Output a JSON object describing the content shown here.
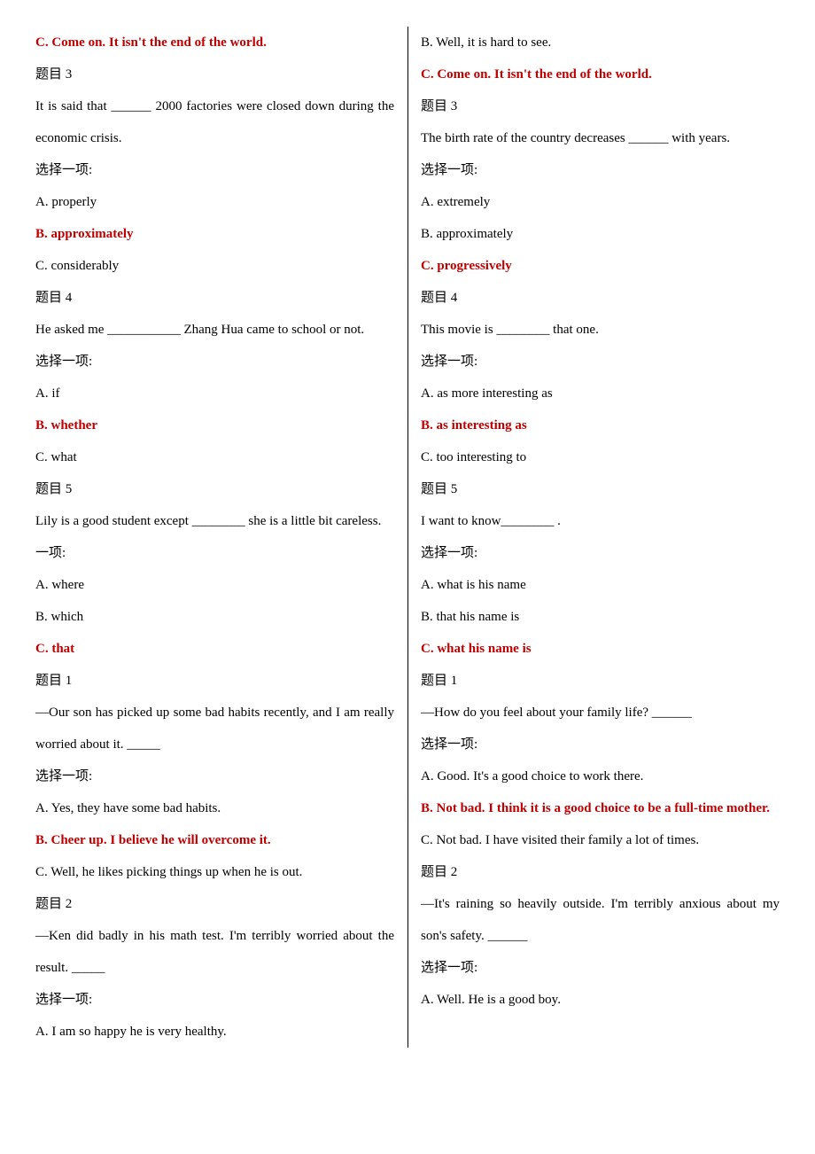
{
  "lines": [
    {
      "cls": "answer",
      "text": "C. Come on. It isn't the end of the world."
    },
    {
      "cls": "heading",
      "text": "题目 3"
    },
    {
      "cls": "stem",
      "text": "It is said that ______ 2000 factories were closed down during the economic crisis."
    },
    {
      "cls": "sel",
      "text": "选择一项:"
    },
    {
      "cls": "normal",
      "text": "A. properly"
    },
    {
      "cls": "answer",
      "text": "B. approximately"
    },
    {
      "cls": "normal",
      "text": "C. considerably"
    },
    {
      "cls": "heading",
      "text": "题目 4"
    },
    {
      "cls": "stem",
      "text": "He asked me ___________ Zhang Hua came to school or not."
    },
    {
      "cls": "sel",
      "text": "选择一项:"
    },
    {
      "cls": "normal",
      "text": "A. if"
    },
    {
      "cls": "answer",
      "text": "B. whether"
    },
    {
      "cls": "normal",
      "text": "C. what"
    },
    {
      "cls": "heading",
      "text": "题目 5"
    },
    {
      "cls": "stem",
      "text": "Lily is a good student except ________ she is a little bit careless."
    },
    {
      "cls": "sel",
      "text": "一项:"
    },
    {
      "cls": "normal",
      "text": "A. where"
    },
    {
      "cls": "normal",
      "text": "B. which"
    },
    {
      "cls": "answer",
      "text": "C. that"
    },
    {
      "cls": "heading",
      "text": "题目 1"
    },
    {
      "cls": "stem",
      "text": "—Our son has picked up some bad habits recently, and I am really worried about it. _____"
    },
    {
      "cls": "sel",
      "text": "选择一项:"
    },
    {
      "cls": "normal",
      "text": "A. Yes, they have some bad habits."
    },
    {
      "cls": "answer",
      "text": "B. Cheer up. I believe he will overcome it."
    },
    {
      "cls": "normal",
      "text": "C. Well, he likes picking things up when he is out."
    },
    {
      "cls": "heading",
      "text": "题目 2"
    },
    {
      "cls": "stem",
      "text": "—Ken did badly in his math test. I'm terribly worried about the result. _____"
    },
    {
      "cls": "sel",
      "text": "选择一项:"
    },
    {
      "cls": "normal noj",
      "text": "A. I am so happy he is very healthy."
    },
    {
      "cls": "normal noj",
      "text": "B. Well, it is hard to see."
    },
    {
      "cls": "answer noj",
      "text": "C. Come on. It isn't the end of the world."
    },
    {
      "cls": "heading",
      "text": "题目 3"
    },
    {
      "cls": "stem noj",
      "text": "The birth rate of the country decreases ______ with years."
    },
    {
      "cls": "sel",
      "text": "选择一项:"
    },
    {
      "cls": "normal",
      "text": "A. extremely"
    },
    {
      "cls": "normal",
      "text": "B. approximately"
    },
    {
      "cls": "answer",
      "text": "C. progressively"
    },
    {
      "cls": "heading",
      "text": "题目 4"
    },
    {
      "cls": "stem noj",
      "text": "This movie is ________ that one."
    },
    {
      "cls": "sel",
      "text": "选择一项:"
    },
    {
      "cls": "normal",
      "text": "A. as more interesting as"
    },
    {
      "cls": "answer",
      "text": "B. as interesting as"
    },
    {
      "cls": "normal",
      "text": "C. too interesting to"
    },
    {
      "cls": "heading",
      "text": "题目 5"
    },
    {
      "cls": "stem noj",
      "text": "I want to know________ ."
    },
    {
      "cls": "sel",
      "text": "选择一项:"
    },
    {
      "cls": "normal",
      "text": "A. what is his name"
    },
    {
      "cls": "normal",
      "text": "B.   that his name is"
    },
    {
      "cls": "answer",
      "text": "C. what his name is"
    },
    {
      "cls": "heading",
      "text": "题目 1"
    },
    {
      "cls": "stem noj",
      "text": "—How do you feel about your family life? ______"
    },
    {
      "cls": "sel",
      "text": "选择一项:"
    },
    {
      "cls": "normal noj",
      "text": "A. Good. It's a good choice to work there."
    },
    {
      "cls": "answer",
      "text": "B. Not bad. I think it is a good choice to be a full-time mother."
    },
    {
      "cls": "normal noj",
      "text": "C. Not bad. I have visited their family a lot of times."
    },
    {
      "cls": "heading",
      "text": "题目 2"
    },
    {
      "cls": "stem",
      "text": "—It's raining so heavily outside. I'm terribly anxious about my son's safety. ______"
    },
    {
      "cls": "sel",
      "text": "选择一项:"
    },
    {
      "cls": "normal noj",
      "text": "A. Well. He is a good boy."
    }
  ]
}
